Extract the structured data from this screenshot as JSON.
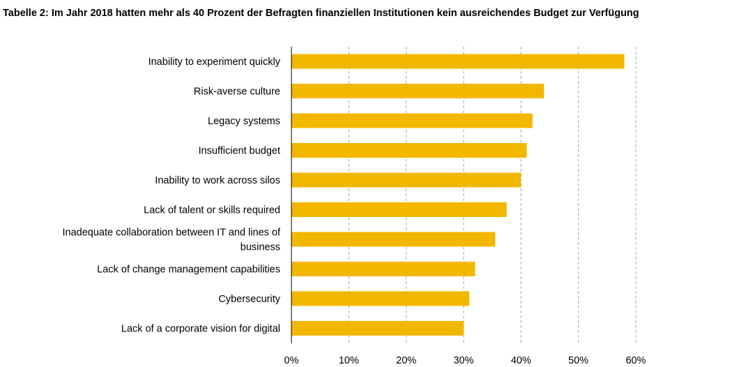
{
  "chart_data": {
    "type": "bar",
    "orientation": "horizontal",
    "title": "Tabelle 2: Im Jahr 2018 hatten mehr als 40 Prozent der Befragten finanziellen Institutionen kein ausreichendes Budget zur Verfügung",
    "categories": [
      "Inability to experiment quickly",
      "Risk-averse culture",
      "Legacy systems",
      "Insufficient budget",
      "Inability to work across silos",
      "Lack of talent or skills required",
      "Inadequate collaboration between IT and lines of business",
      "Lack of change management capabilities",
      "Cybersecurity",
      "Lack of a corporate vision for digital"
    ],
    "category_label_lines": [
      [
        "Inability to experiment quickly"
      ],
      [
        "Risk-averse culture"
      ],
      [
        "Legacy systems"
      ],
      [
        "Insufficient budget"
      ],
      [
        "Inability to work across silos"
      ],
      [
        "Lack of talent or skills required"
      ],
      [
        "Inadequate collaboration between IT and lines of",
        "business"
      ],
      [
        "Lack of change management capabilities"
      ],
      [
        "Cybersecurity"
      ],
      [
        "Lack of a corporate vision for digital"
      ]
    ],
    "values": [
      58,
      44,
      42,
      41,
      40,
      37.5,
      35.5,
      32,
      31,
      30
    ],
    "xlim": [
      0,
      60
    ],
    "xticks": [
      0,
      10,
      20,
      30,
      40,
      50,
      60
    ],
    "xtick_labels": [
      "0%",
      "10%",
      "20%",
      "30%",
      "40%",
      "50%",
      "60%"
    ],
    "xlabel": "",
    "ylabel": "",
    "grid": "vertical-dashed",
    "legend": "none",
    "colors": {
      "bar": "#F2B800",
      "grid": "#A6A6A6",
      "axis": "#000000"
    }
  }
}
